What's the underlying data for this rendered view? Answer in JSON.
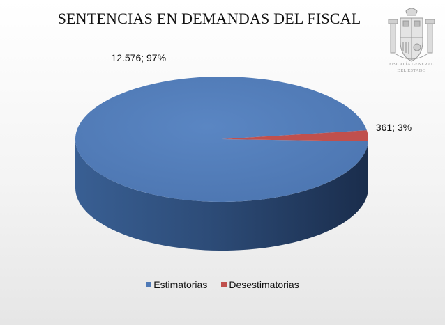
{
  "chart_data": {
    "type": "pie",
    "title": "SENTENCIAS EN DEMANDAS DEL FISCAL",
    "slices": [
      {
        "label": "Estimatorias",
        "value": 12576,
        "percent": 97,
        "data_label": "12.576; 97%",
        "color": "#4f7ab7"
      },
      {
        "label": "Desestimatorias",
        "value": 361,
        "percent": 3,
        "data_label": "361; 3%",
        "color": "#c0504d"
      }
    ],
    "legend_position": "bottom",
    "style": "3d"
  },
  "logo": {
    "name": "coat-of-arms-icon",
    "caption_line1": "FISCALÍA GENERAL",
    "caption_line2": "DEL ESTADO"
  }
}
